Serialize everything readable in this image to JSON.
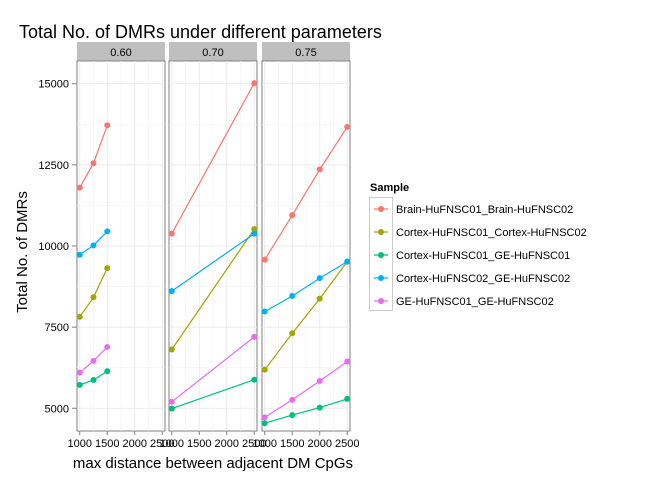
{
  "chart_data": {
    "type": "line",
    "title": "Total No. of DMRs under different parameters",
    "xlabel": "max distance between adjacent DM CpGs",
    "ylabel": "Total No. of DMRs",
    "ylim": [
      4300,
      15700
    ],
    "yticks": [
      5000,
      7500,
      10000,
      12500,
      15000
    ],
    "ytick_labels": [
      "5000",
      "7500",
      "10000",
      "12500",
      "15000"
    ],
    "grid": true,
    "legend": {
      "title": "Sample",
      "placement": "right"
    },
    "panels": [
      {
        "label": "0.60",
        "xlim": [
          950,
          2550
        ],
        "xticks": [
          1000,
          1500,
          2000,
          2500
        ],
        "xtick_labels": [
          "1000",
          "1500",
          "2000",
          "2500"
        ]
      },
      {
        "label": "0.70",
        "xlim": [
          950,
          2550
        ],
        "xticks": [
          1000,
          1500,
          2000,
          2500
        ],
        "xtick_labels": [
          "1000",
          "1500",
          "2000",
          "2500"
        ]
      },
      {
        "label": "0.75",
        "xlim": [
          950,
          2550
        ],
        "xticks": [
          1000,
          1500,
          2000,
          2500
        ],
        "xtick_labels": [
          "1000",
          "1500",
          "2000",
          "2500"
        ]
      }
    ],
    "series": [
      {
        "name": "Brain-HuFNSC01_Brain-HuFNSC02",
        "color": "#F8766D",
        "panels": [
          {
            "x": [
              1000,
              1250,
              1500
            ],
            "y": [
              11800,
              12550,
              13720
            ]
          },
          {
            "x": [
              1000,
              2500
            ],
            "y": [
              10380,
              15020
            ]
          },
          {
            "x": [
              1000,
              1500,
              2000,
              2500
            ],
            "y": [
              9580,
              10950,
              12360,
              13670
            ]
          }
        ]
      },
      {
        "name": "Cortex-HuFNSC01_Cortex-HuFNSC02",
        "color": "#A3A500",
        "panels": [
          {
            "x": [
              1000,
              1250,
              1500
            ],
            "y": [
              7820,
              8420,
              9320
            ]
          },
          {
            "x": [
              1000,
              2500
            ],
            "y": [
              6810,
              10520
            ]
          },
          {
            "x": [
              1000,
              1500,
              2000,
              2500
            ],
            "y": [
              6190,
              7310,
              8380,
              9520
            ]
          }
        ]
      },
      {
        "name": "Cortex-HuFNSC01_GE-HuFNSC01",
        "color": "#00BF7D",
        "panels": [
          {
            "x": [
              1000,
              1250,
              1500
            ],
            "y": [
              5720,
              5870,
              6140
            ]
          },
          {
            "x": [
              1000,
              2500
            ],
            "y": [
              4990,
              5880
            ]
          },
          {
            "x": [
              1000,
              1500,
              2000,
              2500
            ],
            "y": [
              4540,
              4790,
              5020,
              5290
            ]
          }
        ]
      },
      {
        "name": "Cortex-HuFNSC02_GE-HuFNSC02",
        "color": "#00B0F6",
        "panels": [
          {
            "x": [
              1000,
              1250,
              1500
            ],
            "y": [
              9730,
              10020,
              10450
            ]
          },
          {
            "x": [
              1000,
              2500
            ],
            "y": [
              8610,
              10380
            ]
          },
          {
            "x": [
              1000,
              1500,
              2000,
              2500
            ],
            "y": [
              7980,
              8460,
              9010,
              9520
            ]
          }
        ]
      },
      {
        "name": "GE-HuFNSC01_GE-HuFNSC02",
        "color": "#E76BF3",
        "panels": [
          {
            "x": [
              1000,
              1250,
              1500
            ],
            "y": [
              6100,
              6460,
              6890
            ]
          },
          {
            "x": [
              1000,
              2500
            ],
            "y": [
              5200,
              7200
            ]
          },
          {
            "x": [
              1000,
              1500,
              2000,
              2500
            ],
            "y": [
              4720,
              5260,
              5840,
              6440
            ]
          }
        ]
      }
    ]
  }
}
